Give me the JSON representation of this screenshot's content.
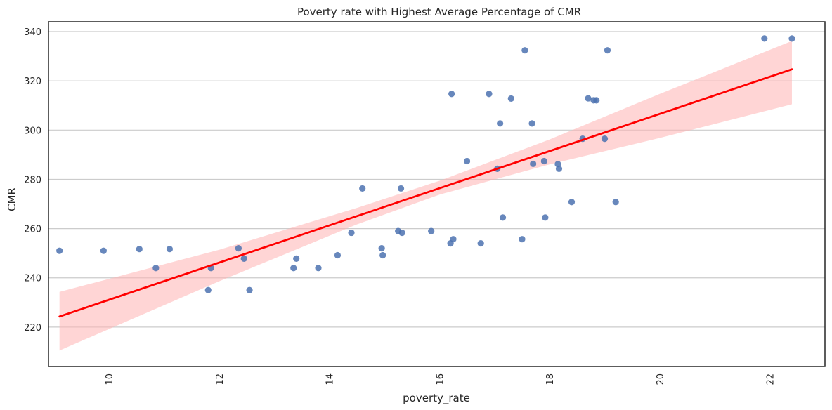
{
  "chart_data": {
    "type": "scatter",
    "title": "Poverty rate with Highest Average Percentage of CMR",
    "xlabel": "poverty_rate",
    "ylabel": "CMR",
    "xlim": [
      8.9,
      23.0
    ],
    "ylim": [
      204,
      344
    ],
    "xticks": [
      10,
      12,
      14,
      16,
      18,
      20,
      22
    ],
    "yticks": [
      220,
      240,
      260,
      280,
      300,
      320,
      340
    ],
    "xtick_labels": [
      "10",
      "12",
      "14",
      "16",
      "18",
      "20",
      "22"
    ],
    "ytick_labels": [
      "220",
      "240",
      "260",
      "280",
      "300",
      "320",
      "340"
    ],
    "grid": "horizontal",
    "colors": {
      "points": "#4c72b0",
      "regression_line": "#ff0000",
      "confidence_band": "#ffb3b3",
      "grid": "#cccccc",
      "frame": "#262626"
    },
    "points": [
      {
        "x": 9.1,
        "y": 251
      },
      {
        "x": 9.9,
        "y": 251
      },
      {
        "x": 10.55,
        "y": 251.7
      },
      {
        "x": 10.85,
        "y": 244
      },
      {
        "x": 11.1,
        "y": 251.7
      },
      {
        "x": 11.8,
        "y": 235
      },
      {
        "x": 11.85,
        "y": 244
      },
      {
        "x": 12.35,
        "y": 252
      },
      {
        "x": 12.45,
        "y": 247.8
      },
      {
        "x": 12.55,
        "y": 235
      },
      {
        "x": 13.35,
        "y": 244
      },
      {
        "x": 13.4,
        "y": 247.8
      },
      {
        "x": 13.8,
        "y": 244
      },
      {
        "x": 14.15,
        "y": 249.2
      },
      {
        "x": 14.4,
        "y": 258.3
      },
      {
        "x": 14.6,
        "y": 276.3
      },
      {
        "x": 14.95,
        "y": 252
      },
      {
        "x": 14.97,
        "y": 249.2
      },
      {
        "x": 15.25,
        "y": 259
      },
      {
        "x": 15.3,
        "y": 276.3
      },
      {
        "x": 15.32,
        "y": 258.3
      },
      {
        "x": 15.85,
        "y": 259
      },
      {
        "x": 16.2,
        "y": 254
      },
      {
        "x": 16.22,
        "y": 314.7
      },
      {
        "x": 16.25,
        "y": 255.7
      },
      {
        "x": 16.5,
        "y": 287.4
      },
      {
        "x": 16.75,
        "y": 254
      },
      {
        "x": 16.9,
        "y": 314.7
      },
      {
        "x": 17.05,
        "y": 284.3
      },
      {
        "x": 17.1,
        "y": 302.7
      },
      {
        "x": 17.15,
        "y": 264.5
      },
      {
        "x": 17.3,
        "y": 312.8
      },
      {
        "x": 17.5,
        "y": 255.7
      },
      {
        "x": 17.55,
        "y": 332.4
      },
      {
        "x": 17.68,
        "y": 302.7
      },
      {
        "x": 17.7,
        "y": 286.3
      },
      {
        "x": 17.9,
        "y": 287.4
      },
      {
        "x": 17.92,
        "y": 264.5
      },
      {
        "x": 18.15,
        "y": 286.2
      },
      {
        "x": 18.17,
        "y": 284.3
      },
      {
        "x": 18.4,
        "y": 270.8
      },
      {
        "x": 18.6,
        "y": 296.5
      },
      {
        "x": 18.7,
        "y": 312.9
      },
      {
        "x": 18.8,
        "y": 312.1
      },
      {
        "x": 18.85,
        "y": 312.1
      },
      {
        "x": 19.0,
        "y": 296.5
      },
      {
        "x": 19.05,
        "y": 332.4
      },
      {
        "x": 19.2,
        "y": 270.8
      },
      {
        "x": 21.9,
        "y": 337.2
      },
      {
        "x": 22.4,
        "y": 337.2
      }
    ],
    "regression": {
      "x_start": 9.1,
      "y_start": 224.3,
      "x_end": 22.4,
      "y_end": 324.7,
      "band": [
        {
          "x": 9.1,
          "lower": 210.5,
          "upper": 234.3
        },
        {
          "x": 12.0,
          "lower": 238.6,
          "upper": 251.4
        },
        {
          "x": 14.5,
          "lower": 261.7,
          "upper": 268.4
        },
        {
          "x": 16.0,
          "lower": 273.8,
          "upper": 279.4
        },
        {
          "x": 18.0,
          "lower": 286.1,
          "upper": 296.2
        },
        {
          "x": 20.0,
          "lower": 296.8,
          "upper": 314.7
        },
        {
          "x": 22.4,
          "lower": 310.5,
          "upper": 336.2
        }
      ]
    }
  }
}
